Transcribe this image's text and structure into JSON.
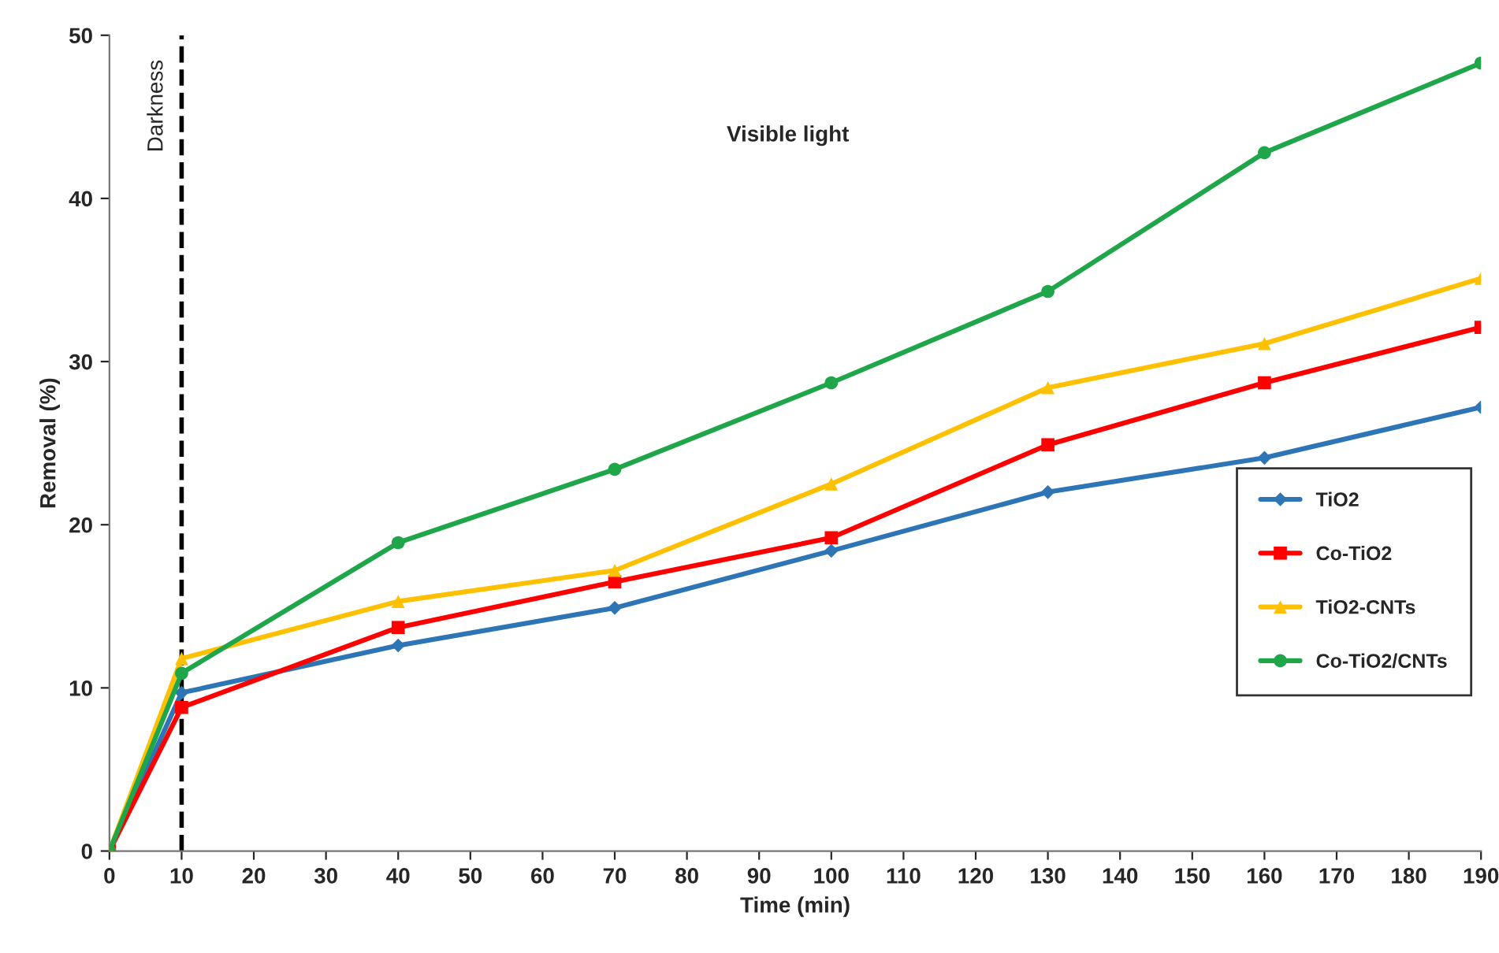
{
  "chart_data": {
    "type": "line",
    "xlabel": "Time (min)",
    "ylabel": "Removal (%)",
    "x": [
      0,
      10,
      40,
      70,
      100,
      130,
      160,
      190
    ],
    "series": [
      {
        "name": "TiO2",
        "color": "#2e75b6",
        "marker": "diamond",
        "values": [
          0,
          9.7,
          12.6,
          14.9,
          18.4,
          22.0,
          24.1,
          27.2
        ]
      },
      {
        "name": "Co-TiO2",
        "color": "#ff0000",
        "marker": "square",
        "values": [
          0,
          8.8,
          13.7,
          16.5,
          19.2,
          24.9,
          28.7,
          32.1
        ]
      },
      {
        "name": "TiO2-CNTs",
        "color": "#ffc000",
        "marker": "triangle",
        "values": [
          0,
          11.8,
          15.3,
          17.2,
          22.5,
          28.4,
          31.1,
          35.1
        ]
      },
      {
        "name": "Co-TiO2/CNTs",
        "color": "#1fa64a",
        "marker": "circle",
        "values": [
          0,
          10.9,
          18.9,
          23.4,
          28.7,
          34.3,
          42.8,
          48.3
        ]
      }
    ],
    "xlim": [
      0,
      190
    ],
    "xticks": [
      0,
      10,
      20,
      30,
      40,
      50,
      60,
      70,
      80,
      90,
      100,
      110,
      120,
      130,
      140,
      150,
      160,
      170,
      180,
      190
    ],
    "ylim": [
      0,
      50
    ],
    "yticks": [
      0,
      10,
      20,
      30,
      40,
      50
    ],
    "ref_lines": [
      {
        "axis": "x",
        "value": 10,
        "label": "Darkness",
        "color": "#000000",
        "line_style": "dashed"
      }
    ],
    "annotations": [
      "Visible light"
    ],
    "grid": false,
    "legend": "right"
  }
}
